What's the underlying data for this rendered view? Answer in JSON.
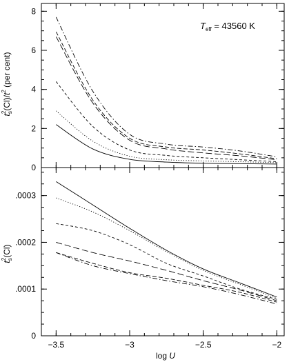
{
  "chart_data": [
    {
      "type": "line",
      "panel": "top",
      "ylabel": "t_s^2(Cl)/t^2 (per cent)",
      "ylabel_parts": [
        "t",
        "s",
        "2",
        "(Cl)/",
        "t",
        "2",
        " (per cent)"
      ],
      "annotation": "T_eff = 43560 K",
      "annotation_parts": [
        "T",
        "eff",
        " = 43560 K"
      ],
      "xlim": [
        -3.6,
        -1.95
      ],
      "ylim": [
        0,
        8.4
      ],
      "y_ticks": [
        0,
        2,
        4,
        6,
        8
      ],
      "y_tick_labels": [
        "0",
        "2",
        "4",
        "6",
        "8"
      ],
      "x": [
        -3.5,
        -3.25,
        -3.0,
        -2.75,
        -2.5,
        -2.25,
        -2.0
      ],
      "series": [
        {
          "style": "solid",
          "values": [
            2.2,
            0.95,
            0.42,
            0.28,
            0.22,
            0.2,
            0.18
          ]
        },
        {
          "style": "dotted",
          "values": [
            2.9,
            1.35,
            0.58,
            0.4,
            0.34,
            0.3,
            0.25
          ]
        },
        {
          "style": "dashed",
          "values": [
            4.4,
            2.1,
            0.9,
            0.62,
            0.5,
            0.4,
            0.3
          ]
        },
        {
          "style": "longdash",
          "values": [
            6.7,
            3.3,
            1.4,
            0.95,
            0.75,
            0.6,
            0.4
          ]
        },
        {
          "style": "dashed2",
          "values": [
            6.95,
            3.45,
            1.5,
            1.05,
            0.9,
            0.7,
            0.45
          ]
        },
        {
          "style": "dashdot",
          "values": [
            7.7,
            3.9,
            1.7,
            1.2,
            1.05,
            0.85,
            0.55
          ]
        }
      ]
    },
    {
      "type": "line",
      "panel": "bottom",
      "ylabel": "t_s^2(Cl)",
      "ylabel_parts": [
        "t",
        "s",
        "2",
        "(Cl)"
      ],
      "xlabel": "log U",
      "xlabel_parts": [
        "log ",
        "U"
      ],
      "xlim": [
        -3.6,
        -1.95
      ],
      "ylim": [
        0,
        0.00036
      ],
      "y_ticks": [
        0,
        0.0001,
        0.0002,
        0.0003
      ],
      "y_tick_labels": [
        "0",
        ".0001",
        ".0002",
        ".0003"
      ],
      "x_ticks": [
        -3.5,
        -3.0,
        -2.5,
        -2.0
      ],
      "x_tick_labels": [
        "−3.5",
        "−3",
        "−2.5",
        "−2"
      ],
      "x": [
        -3.5,
        -3.25,
        -3.0,
        -2.75,
        -2.5,
        -2.25,
        -2.0
      ],
      "series": [
        {
          "style": "solid",
          "values": [
            0.00033,
            0.00028,
            0.00023,
            0.000183,
            0.000143,
            0.000113,
            8.3e-05
          ]
        },
        {
          "style": "dotted",
          "values": [
            0.000295,
            0.000265,
            0.000225,
            0.00018,
            0.00014,
            0.00011,
            8e-05
          ]
        },
        {
          "style": "dashed",
          "values": [
            0.00024,
            0.000225,
            0.000195,
            0.000155,
            0.000128,
            0.0001,
            7.8e-05
          ]
        },
        {
          "style": "longdash",
          "values": [
            0.0002,
            0.000178,
            0.00016,
            0.00014,
            0.000118,
            9.8e-05,
            7.5e-05
          ]
        },
        {
          "style": "dashed2",
          "values": [
            0.000178,
            0.000155,
            0.000135,
            0.000123,
            0.000108,
            9.3e-05,
            7.2e-05
          ]
        },
        {
          "style": "dashdot",
          "values": [
            0.000178,
            0.00015,
            0.000133,
            0.000118,
            0.000105,
            8.8e-05,
            6.8e-05
          ]
        }
      ]
    }
  ]
}
